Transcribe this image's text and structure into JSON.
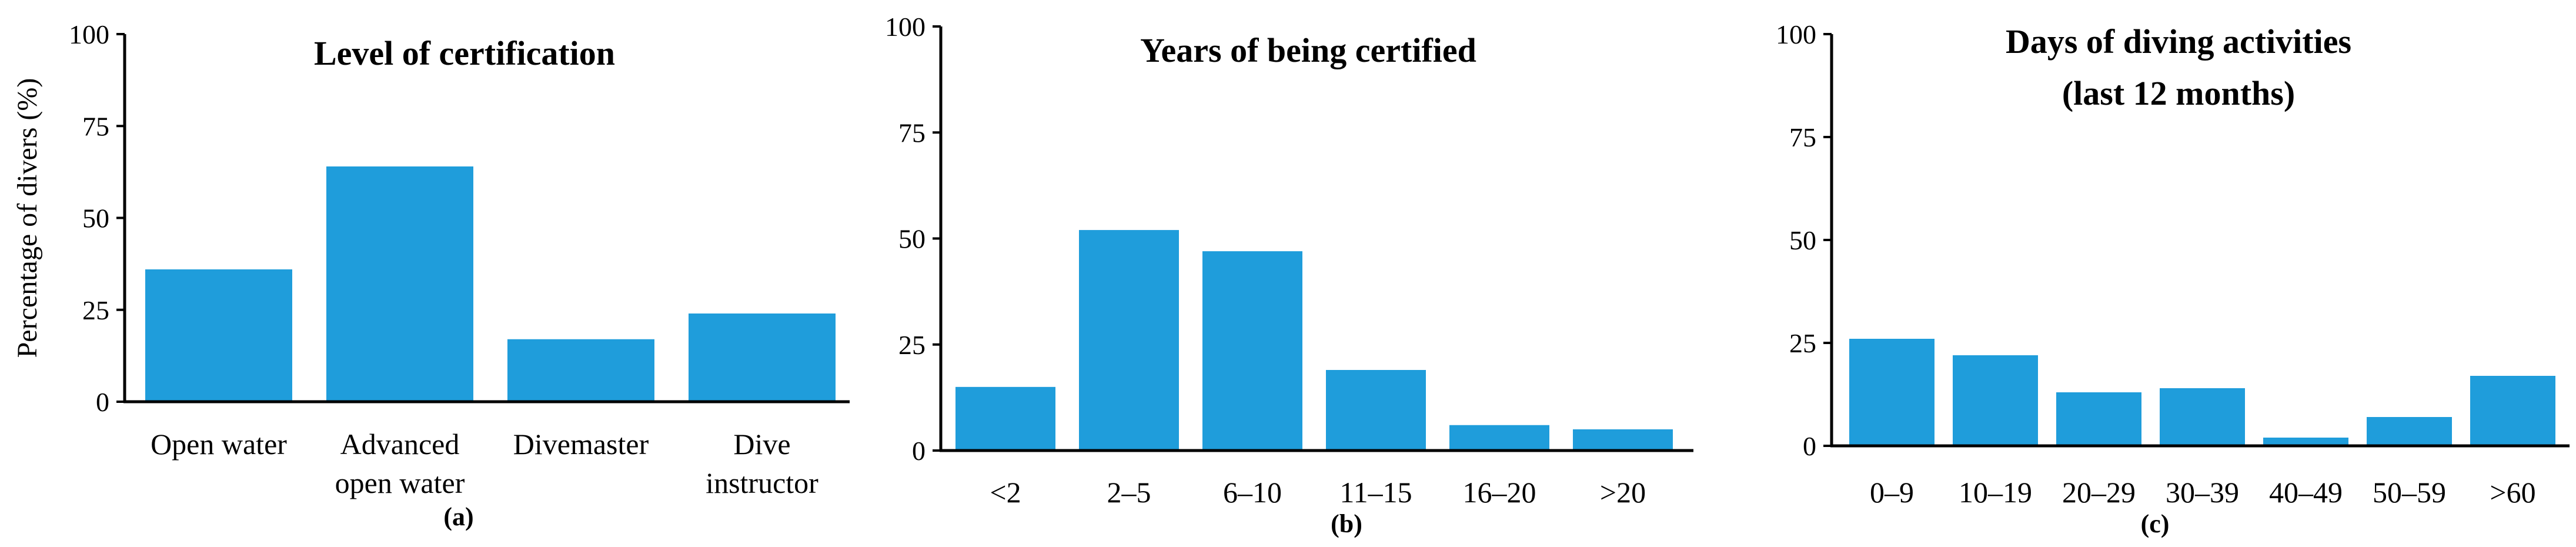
{
  "colors": {
    "bar": "#1f9ddb",
    "axis": "#000000"
  },
  "chart_data": [
    {
      "type": "bar",
      "title": [
        "Level of certification"
      ],
      "ylabel": "Percentage of divers (%)",
      "xlabel": "",
      "panel_label": "(a)",
      "ylim": [
        0,
        100
      ],
      "yticks": [
        0,
        25,
        50,
        75,
        100
      ],
      "grid": false,
      "categories": [
        [
          "Open water"
        ],
        [
          "Advanced",
          "open water"
        ],
        [
          "Divemaster"
        ],
        [
          "Dive",
          "instructor"
        ]
      ],
      "values": [
        36,
        64,
        17,
        24
      ]
    },
    {
      "type": "bar",
      "title": [
        "Years of being certified"
      ],
      "ylabel": "",
      "xlabel": "",
      "panel_label": "(b)",
      "ylim": [
        0,
        100
      ],
      "yticks": [
        0,
        25,
        50,
        75,
        100
      ],
      "grid": false,
      "categories": [
        [
          "<2"
        ],
        [
          "2–5"
        ],
        [
          "6–10"
        ],
        [
          "11–15"
        ],
        [
          "16–20"
        ],
        [
          ">20"
        ]
      ],
      "values": [
        15,
        52,
        47,
        19,
        6,
        5
      ]
    },
    {
      "type": "bar",
      "title": [
        "Days of diving activities",
        "(last 12 months)"
      ],
      "ylabel": "",
      "xlabel": "",
      "panel_label": "(c)",
      "ylim": [
        0,
        100
      ],
      "yticks": [
        0,
        25,
        50,
        75,
        100
      ],
      "grid": false,
      "categories": [
        [
          "0–9"
        ],
        [
          "10–19"
        ],
        [
          "20–29"
        ],
        [
          "30–39"
        ],
        [
          "40–49"
        ],
        [
          "50–59"
        ],
        [
          ">60"
        ]
      ],
      "values": [
        26,
        22,
        13,
        14,
        2,
        7,
        17
      ]
    }
  ]
}
